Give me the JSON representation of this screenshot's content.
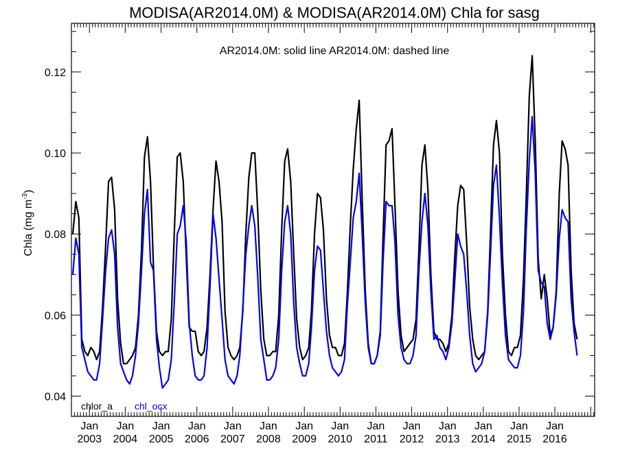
{
  "chart_data": {
    "type": "line",
    "title": "MODISA(AR2014.0M) & MODISA(AR2014.0M)  Chla for sasg",
    "subtitle": "AR2014.0M: solid line   AR2014.0M: dashed line",
    "ylabel": "Chla (mg m",
    "ylabel_sup": "-3",
    "ylabel_close": ")",
    "xlabel": "",
    "ylim": [
      0.035,
      0.132
    ],
    "xlim": [
      "2002-07-01",
      "2017-02-10"
    ],
    "y_ticks": [
      0.04,
      0.06,
      0.08,
      0.1,
      0.12
    ],
    "y_tick_labels": [
      "0.04",
      "0.06",
      "0.08",
      "0.10",
      "0.12"
    ],
    "x_ticks": [
      "2003-01-01",
      "2004-01-01",
      "2005-01-01",
      "2006-01-01",
      "2007-01-01",
      "2008-01-01",
      "2009-01-01",
      "2010-01-01",
      "2011-01-01",
      "2012-01-01",
      "2013-01-01",
      "2014-01-01",
      "2015-01-01",
      "2016-01-01"
    ],
    "x_tick_month": "Jan",
    "x_tick_years": [
      "2003",
      "2004",
      "2005",
      "2006",
      "2007",
      "2008",
      "2009",
      "2010",
      "2011",
      "2012",
      "2013",
      "2014",
      "2015",
      "2016"
    ],
    "grid": false,
    "legend_position": "bottom-left",
    "series": [
      {
        "name": "chlor_a",
        "color": "#000000",
        "start": "2002-07",
        "values": [
          0.08,
          0.088,
          0.084,
          0.054,
          0.051,
          0.05,
          0.052,
          0.051,
          0.049,
          0.051,
          0.062,
          0.077,
          0.093,
          0.094,
          0.086,
          0.064,
          0.053,
          0.048,
          0.048,
          0.049,
          0.05,
          0.052,
          0.06,
          0.076,
          0.099,
          0.104,
          0.093,
          0.072,
          0.056,
          0.051,
          0.05,
          0.051,
          0.051,
          0.059,
          0.08,
          0.099,
          0.1,
          0.093,
          0.074,
          0.057,
          0.056,
          0.056,
          0.051,
          0.05,
          0.051,
          0.057,
          0.07,
          0.086,
          0.098,
          0.093,
          0.083,
          0.061,
          0.052,
          0.05,
          0.049,
          0.05,
          0.052,
          0.061,
          0.08,
          0.094,
          0.1,
          0.1,
          0.085,
          0.066,
          0.054,
          0.05,
          0.05,
          0.051,
          0.051,
          0.06,
          0.081,
          0.098,
          0.101,
          0.093,
          0.075,
          0.059,
          0.052,
          0.049,
          0.05,
          0.052,
          0.061,
          0.08,
          0.09,
          0.089,
          0.081,
          0.064,
          0.055,
          0.052,
          0.052,
          0.05,
          0.05,
          0.053,
          0.065,
          0.082,
          0.096,
          0.106,
          0.113,
          0.088,
          0.066,
          0.053,
          0.048,
          0.048,
          0.05,
          0.056,
          0.079,
          0.102,
          0.103,
          0.106,
          0.087,
          0.066,
          0.055,
          0.051,
          0.052,
          0.053,
          0.054,
          0.059,
          0.076,
          0.097,
          0.102,
          0.091,
          0.07,
          0.056,
          0.054,
          0.054,
          0.053,
          0.051,
          0.053,
          0.06,
          0.074,
          0.087,
          0.092,
          0.091,
          0.078,
          0.062,
          0.054,
          0.05,
          0.049,
          0.05,
          0.051,
          0.061,
          0.08,
          0.102,
          0.108,
          0.1,
          0.075,
          0.06,
          0.051,
          0.05,
          0.052,
          0.052,
          0.055,
          0.069,
          0.089,
          0.114,
          0.124,
          0.103,
          0.074,
          0.064,
          0.07,
          0.064,
          0.055,
          0.057,
          0.066,
          0.09,
          0.103,
          0.101,
          0.097,
          0.071,
          0.058,
          0.054
        ]
      },
      {
        "name": "chl_ocx",
        "color": "#0000ee",
        "start": "2002-07",
        "values": [
          0.07,
          0.079,
          0.075,
          0.052,
          0.049,
          0.046,
          0.045,
          0.044,
          0.044,
          0.048,
          0.059,
          0.071,
          0.079,
          0.081,
          0.075,
          0.057,
          0.048,
          0.046,
          0.044,
          0.043,
          0.045,
          0.05,
          0.058,
          0.071,
          0.085,
          0.091,
          0.073,
          0.071,
          0.054,
          0.047,
          0.042,
          0.043,
          0.044,
          0.049,
          0.063,
          0.08,
          0.082,
          0.087,
          0.078,
          0.058,
          0.05,
          0.045,
          0.044,
          0.044,
          0.045,
          0.052,
          0.067,
          0.085,
          0.079,
          0.069,
          0.059,
          0.049,
          0.045,
          0.044,
          0.043,
          0.045,
          0.05,
          0.062,
          0.075,
          0.082,
          0.087,
          0.082,
          0.069,
          0.054,
          0.049,
          0.044,
          0.044,
          0.045,
          0.047,
          0.054,
          0.071,
          0.083,
          0.087,
          0.08,
          0.063,
          0.052,
          0.048,
          0.045,
          0.045,
          0.048,
          0.057,
          0.071,
          0.077,
          0.076,
          0.066,
          0.056,
          0.05,
          0.047,
          0.046,
          0.045,
          0.046,
          0.049,
          0.062,
          0.073,
          0.084,
          0.088,
          0.095,
          0.08,
          0.063,
          0.052,
          0.048,
          0.048,
          0.05,
          0.055,
          0.073,
          0.088,
          0.087,
          0.087,
          0.078,
          0.06,
          0.052,
          0.049,
          0.048,
          0.048,
          0.05,
          0.055,
          0.071,
          0.083,
          0.09,
          0.082,
          0.066,
          0.054,
          0.055,
          0.052,
          0.051,
          0.049,
          0.052,
          0.058,
          0.068,
          0.08,
          0.077,
          0.075,
          0.066,
          0.055,
          0.048,
          0.046,
          0.047,
          0.048,
          0.051,
          0.06,
          0.075,
          0.092,
          0.097,
          0.084,
          0.068,
          0.055,
          0.049,
          0.048,
          0.047,
          0.047,
          0.05,
          0.061,
          0.081,
          0.098,
          0.109,
          0.095,
          0.071,
          0.068,
          0.067,
          0.058,
          0.054,
          0.057,
          0.065,
          0.079,
          0.086,
          0.084,
          0.083,
          0.064,
          0.056,
          0.05
        ]
      }
    ]
  }
}
